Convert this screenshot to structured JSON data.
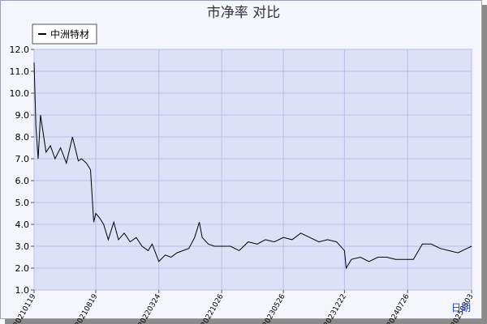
{
  "chart_data": {
    "type": "line",
    "title": "市净率  对比",
    "xlabel": "日期",
    "ylabel": "",
    "ylim": [
      1.0,
      12.0
    ],
    "yticks": [
      "1.0",
      "2.0",
      "3.0",
      "4.0",
      "5.0",
      "6.0",
      "7.0",
      "8.0",
      "9.0",
      "10.0",
      "11.0",
      "12.0"
    ],
    "xticks": [
      "20210119",
      "20210819",
      "20220324",
      "20221026",
      "20230526",
      "20231222",
      "20240726",
      "20250303"
    ],
    "grid": true,
    "legend_position": "top-left",
    "colors": {
      "line": "#000000",
      "plot_bg": "#dde0f7",
      "grid": "#b8c0e8",
      "xlabel": "#1a3fd0"
    },
    "series": [
      {
        "name": "中洲特材",
        "x": [
          "20210119",
          "20210125",
          "20210202",
          "20210210",
          "20210301",
          "20210316",
          "20210401",
          "20210420",
          "20210510",
          "20210531",
          "20210620",
          "20210701",
          "20210718",
          "20210801",
          "20210812",
          "20210819",
          "20210901",
          "20210915",
          "20211001",
          "20211020",
          "20211105",
          "20211125",
          "20211215",
          "20220105",
          "20220125",
          "20220215",
          "20220301",
          "20220324",
          "20220415",
          "20220505",
          "20220525",
          "20220615",
          "20220705",
          "20220725",
          "20220810",
          "20220820",
          "20220910",
          "20221001",
          "20221026",
          "20221125",
          "20221225",
          "20230125",
          "20230225",
          "20230325",
          "20230425",
          "20230526",
          "20230625",
          "20230725",
          "20230825",
          "20230925",
          "20231025",
          "20231125",
          "20231222",
          "20231228",
          "20240115",
          "20240215",
          "20240315",
          "20240415",
          "20240515",
          "20240615",
          "20240726",
          "20240815",
          "20240915",
          "20241015",
          "20241115",
          "20241215",
          "20250115",
          "20250215",
          "20250303"
        ],
        "values": [
          11.4,
          8.5,
          7.0,
          9.0,
          7.3,
          7.6,
          7.0,
          7.5,
          6.8,
          8.0,
          6.9,
          7.0,
          6.8,
          6.5,
          4.1,
          4.5,
          4.3,
          4.0,
          3.3,
          4.1,
          3.3,
          3.6,
          3.2,
          3.4,
          3.0,
          2.8,
          3.1,
          2.3,
          2.6,
          2.5,
          2.7,
          2.8,
          2.9,
          3.4,
          4.1,
          3.4,
          3.1,
          3.0,
          3.0,
          3.0,
          2.8,
          3.2,
          3.1,
          3.3,
          3.2,
          3.4,
          3.3,
          3.6,
          3.4,
          3.2,
          3.3,
          3.2,
          2.8,
          2.0,
          2.4,
          2.5,
          2.3,
          2.5,
          2.5,
          2.4,
          2.4,
          2.4,
          3.1,
          3.1,
          2.9,
          2.8,
          2.7,
          2.9,
          3.0
        ]
      }
    ]
  }
}
